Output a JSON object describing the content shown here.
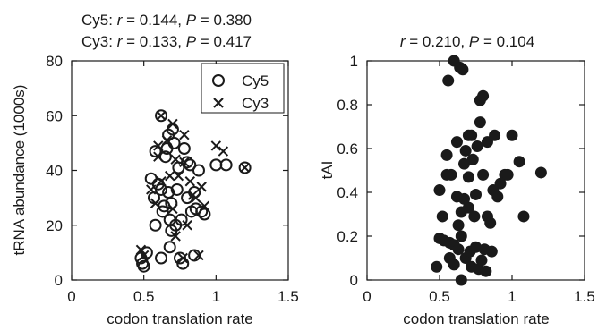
{
  "chart_data": [
    {
      "type": "scatter",
      "title_lines": [
        {
          "series": "Cy5: ",
          "r_sym": "r",
          "r_val": " = 0.144, ",
          "p_sym": "P",
          "p_val": " = 0.380"
        },
        {
          "series": "Cy3: ",
          "r_sym": "r",
          "r_val": " = 0.133, ",
          "p_sym": "P",
          "p_val": " = 0.417"
        }
      ],
      "xlabel": "codon translation rate",
      "ylabel": "tRNA abundance (1000s)",
      "xlim": [
        0,
        1.5
      ],
      "ylim": [
        0,
        80
      ],
      "xticks": [
        "0",
        "0.5",
        "1",
        "1.5"
      ],
      "yticks": [
        "0",
        "20",
        "40",
        "60",
        "80"
      ],
      "grid": false,
      "legend_position": "top-right",
      "series": [
        {
          "name": "Cy5",
          "marker": "open-circle",
          "points": [
            [
              0.48,
              8
            ],
            [
              0.49,
              6
            ],
            [
              0.5,
              5
            ],
            [
              0.52,
              10
            ],
            [
              0.55,
              37
            ],
            [
              0.57,
              30
            ],
            [
              0.58,
              20
            ],
            [
              0.58,
              47
            ],
            [
              0.6,
              35
            ],
            [
              0.62,
              8
            ],
            [
              0.62,
              33
            ],
            [
              0.63,
              25
            ],
            [
              0.64,
              27
            ],
            [
              0.65,
              45
            ],
            [
              0.66,
              48
            ],
            [
              0.67,
              32
            ],
            [
              0.67,
              53
            ],
            [
              0.68,
              22
            ],
            [
              0.68,
              12
            ],
            [
              0.69,
              28
            ],
            [
              0.69,
              18
            ],
            [
              0.7,
              55
            ],
            [
              0.71,
              50
            ],
            [
              0.72,
              20
            ],
            [
              0.73,
              33
            ],
            [
              0.74,
              41
            ],
            [
              0.75,
              8
            ],
            [
              0.76,
              22
            ],
            [
              0.77,
              6
            ],
            [
              0.78,
              48
            ],
            [
              0.8,
              30
            ],
            [
              0.8,
              43
            ],
            [
              0.82,
              42
            ],
            [
              0.83,
              25
            ],
            [
              0.85,
              32
            ],
            [
              0.86,
              26
            ],
            [
              0.88,
              40
            ],
            [
              0.9,
              25
            ],
            [
              0.92,
              24
            ],
            [
              1.0,
              42
            ],
            [
              1.07,
              42
            ],
            [
              1.2,
              41
            ],
            [
              0.62,
              60
            ],
            [
              0.85,
              9
            ]
          ]
        },
        {
          "name": "Cy3",
          "marker": "x",
          "points": [
            [
              0.48,
              11
            ],
            [
              0.5,
              9
            ],
            [
              0.55,
              33
            ],
            [
              0.58,
              28
            ],
            [
              0.6,
              49
            ],
            [
              0.62,
              36
            ],
            [
              0.62,
              60
            ],
            [
              0.66,
              51
            ],
            [
              0.68,
              38
            ],
            [
              0.7,
              26
            ],
            [
              0.7,
              57
            ],
            [
              0.72,
              16
            ],
            [
              0.72,
              44
            ],
            [
              0.74,
              38
            ],
            [
              0.77,
              8
            ],
            [
              0.78,
              53
            ],
            [
              0.8,
              20
            ],
            [
              0.82,
              36
            ],
            [
              0.84,
              31
            ],
            [
              0.86,
              30
            ],
            [
              0.88,
              9
            ],
            [
              0.9,
              34
            ],
            [
              0.92,
              27
            ],
            [
              1.0,
              49
            ],
            [
              1.05,
              47
            ],
            [
              1.2,
              41
            ],
            [
              0.6,
              45
            ],
            [
              0.78,
              43
            ]
          ]
        }
      ]
    },
    {
      "type": "scatter",
      "title_lines": [
        {
          "series": "",
          "r_sym": "r",
          "r_val": " = 0.210, ",
          "p_sym": "P",
          "p_val": " = 0.104"
        }
      ],
      "xlabel": "codon translation rate",
      "ylabel": "tAI",
      "xlim": [
        0,
        1.5
      ],
      "ylim": [
        0,
        1
      ],
      "xticks": [
        "0",
        "0.5",
        "1",
        "1.5"
      ],
      "yticks": [
        "0",
        "0.2",
        "0.4",
        "0.6",
        "0.8",
        "1"
      ],
      "grid": false,
      "series": [
        {
          "name": "",
          "marker": "filled-circle",
          "points": [
            [
              0.48,
              0.06
            ],
            [
              0.5,
              0.19
            ],
            [
              0.5,
              0.41
            ],
            [
              0.52,
              0.29
            ],
            [
              0.53,
              0.18
            ],
            [
              0.55,
              0.57
            ],
            [
              0.55,
              0.48
            ],
            [
              0.56,
              0.91
            ],
            [
              0.57,
              0.17
            ],
            [
              0.57,
              0.1
            ],
            [
              0.58,
              0.48
            ],
            [
              0.6,
              0.16
            ],
            [
              0.6,
              0.07
            ],
            [
              0.6,
              1.0
            ],
            [
              0.62,
              0.63
            ],
            [
              0.62,
              0.38
            ],
            [
              0.63,
              0.14
            ],
            [
              0.63,
              0.25
            ],
            [
              0.64,
              0.97
            ],
            [
              0.65,
              0.31
            ],
            [
              0.65,
              0.2
            ],
            [
              0.65,
              0.0
            ],
            [
              0.66,
              0.96
            ],
            [
              0.67,
              0.37
            ],
            [
              0.67,
              0.53
            ],
            [
              0.68,
              0.1
            ],
            [
              0.68,
              0.59
            ],
            [
              0.7,
              0.33
            ],
            [
              0.7,
              0.66
            ],
            [
              0.7,
              0.47
            ],
            [
              0.71,
              0.13
            ],
            [
              0.72,
              0.06
            ],
            [
              0.72,
              0.66
            ],
            [
              0.73,
              0.55
            ],
            [
              0.74,
              0.29
            ],
            [
              0.75,
              0.39
            ],
            [
              0.75,
              0.15
            ],
            [
              0.76,
              0.61
            ],
            [
              0.77,
              0.05
            ],
            [
              0.78,
              0.72
            ],
            [
              0.78,
              0.82
            ],
            [
              0.79,
              0.09
            ],
            [
              0.8,
              0.84
            ],
            [
              0.8,
              0.48
            ],
            [
              0.81,
              0.14
            ],
            [
              0.82,
              0.04
            ],
            [
              0.83,
              0.63
            ],
            [
              0.83,
              0.29
            ],
            [
              0.85,
              0.26
            ],
            [
              0.86,
              0.13
            ],
            [
              0.88,
              0.66
            ],
            [
              0.9,
              0.38
            ],
            [
              0.92,
              0.44
            ],
            [
              0.95,
              0.48
            ],
            [
              0.97,
              0.48
            ],
            [
              1.0,
              0.66
            ],
            [
              1.05,
              0.54
            ],
            [
              1.08,
              0.29
            ],
            [
              1.2,
              0.49
            ],
            [
              0.87,
              0.41
            ]
          ]
        }
      ]
    }
  ]
}
